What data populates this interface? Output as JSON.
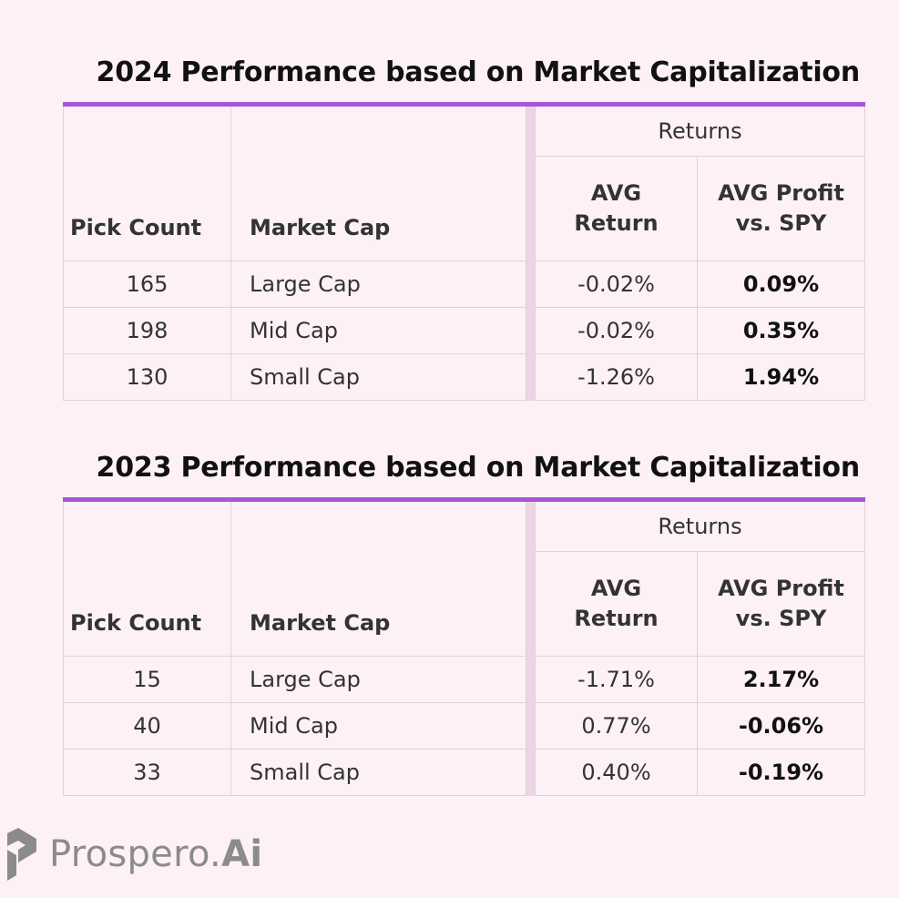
{
  "tables": [
    {
      "title": "2024 Performance based on Market Capitalization",
      "headers": {
        "pick_count": "Pick Count",
        "market_cap": "Market Cap",
        "returns": "Returns",
        "avg_return_line1": "AVG",
        "avg_return_line2": "Return",
        "avg_profit_line1": "AVG Profit",
        "avg_profit_line2": "vs. SPY"
      },
      "rows": [
        {
          "pick_count": "165",
          "market_cap": "Large Cap",
          "avg_return": "-0.02%",
          "avg_profit": "0.09%"
        },
        {
          "pick_count": "198",
          "market_cap": "Mid Cap",
          "avg_return": "-0.02%",
          "avg_profit": "0.35%"
        },
        {
          "pick_count": "130",
          "market_cap": "Small Cap",
          "avg_return": "-1.26%",
          "avg_profit": "1.94%"
        }
      ]
    },
    {
      "title": "2023 Performance based on Market Capitalization",
      "headers": {
        "pick_count": "Pick Count",
        "market_cap": "Market Cap",
        "returns": "Returns",
        "avg_return_line1": "AVG",
        "avg_return_line2": "Return",
        "avg_profit_line1": "AVG Profit",
        "avg_profit_line2": "vs. SPY"
      },
      "rows": [
        {
          "pick_count": "15",
          "market_cap": "Large Cap",
          "avg_return": "-1.71%",
          "avg_profit": "2.17%"
        },
        {
          "pick_count": "40",
          "market_cap": "Mid Cap",
          "avg_return": "0.77%",
          "avg_profit": "-0.06%"
        },
        {
          "pick_count": "33",
          "market_cap": "Small Cap",
          "avg_return": "0.40%",
          "avg_profit": "-0.19%"
        }
      ]
    }
  ],
  "brand": {
    "logo_icon": "prospero-logo-icon",
    "name_part1": "Prospero.",
    "name_part2": "Ai"
  },
  "colors": {
    "background": "#fdf1f6",
    "accent_rule": "#a855d8",
    "cell_border": "#e3d0dd",
    "logo_gray": "#8b8b8b"
  }
}
